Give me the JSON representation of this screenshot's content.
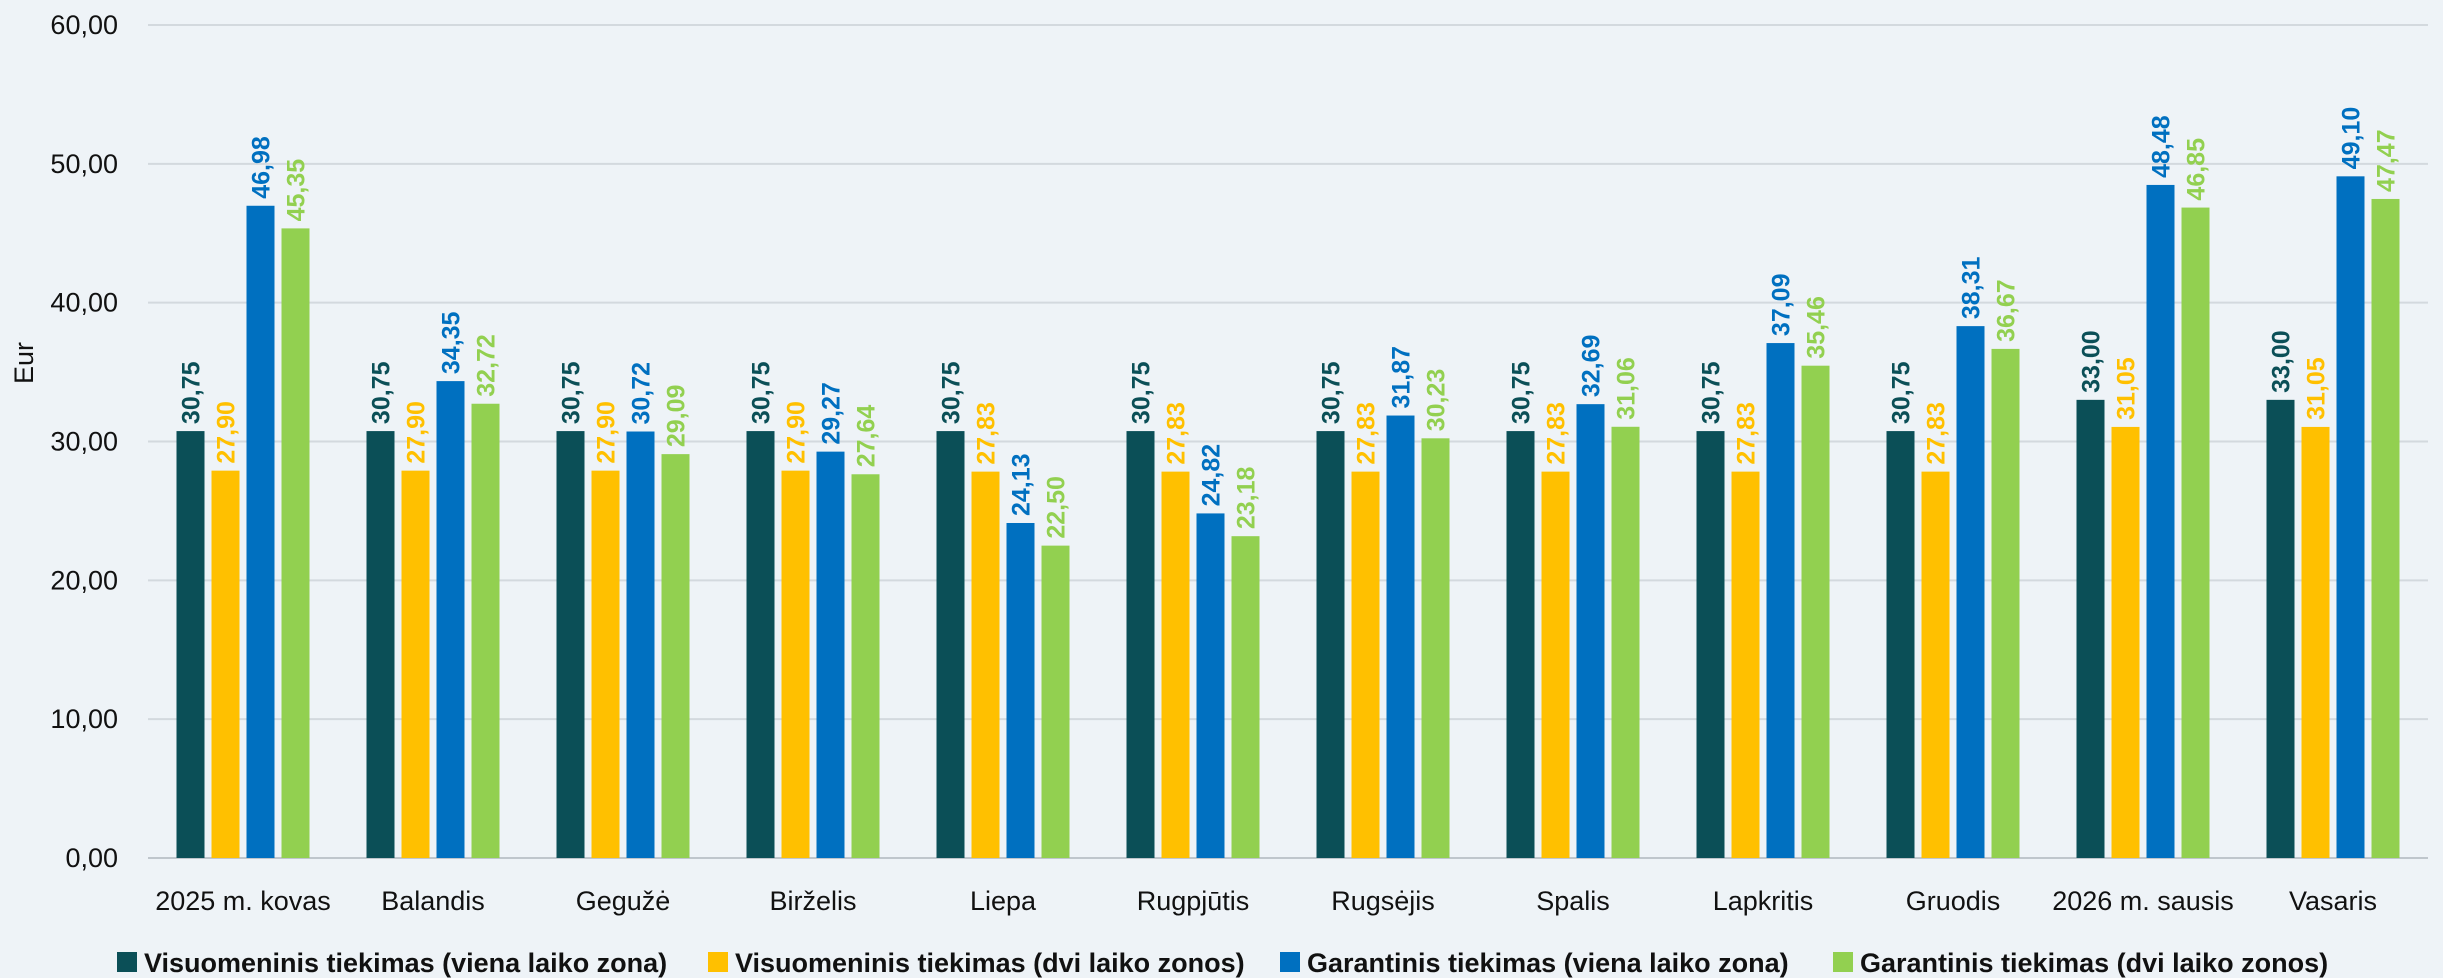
{
  "chart_data": {
    "type": "bar",
    "ylabel": "Eur",
    "ylim": [
      0,
      60
    ],
    "yticks": [
      "0,00",
      "10,00",
      "20,00",
      "30,00",
      "40,00",
      "50,00",
      "60,00"
    ],
    "grid": true,
    "legend_position": "bottom",
    "categories": [
      "2025 m. kovas",
      "Balandis",
      "Gegužė",
      "Birželis",
      "Liepa",
      "Rugpjūtis",
      "Rugsėjis",
      "Spalis",
      "Lapkritis",
      "Gruodis",
      "2026 m. sausis",
      "Vasaris"
    ],
    "series": [
      {
        "name": "Visuomeninis tiekimas (viena laiko zona)",
        "color": "#0b4f57",
        "values": [
          30.75,
          30.75,
          30.75,
          30.75,
          30.75,
          30.75,
          30.75,
          30.75,
          30.75,
          30.75,
          33.0,
          33.0
        ],
        "labels": [
          "30,75",
          "30,75",
          "30,75",
          "30,75",
          "30,75",
          "30,75",
          "30,75",
          "30,75",
          "30,75",
          "30,75",
          "33,00",
          "33,00"
        ]
      },
      {
        "name": "Visuomeninis tiekimas (dvi laiko zonos)",
        "color": "#ffc000",
        "values": [
          27.9,
          27.9,
          27.9,
          27.9,
          27.83,
          27.83,
          27.83,
          27.83,
          27.83,
          27.83,
          31.05,
          31.05
        ],
        "labels": [
          "27,90",
          "27,90",
          "27,90",
          "27,90",
          "27,83",
          "27,83",
          "27,83",
          "27,83",
          "27,83",
          "27,83",
          "31,05",
          "31,05"
        ]
      },
      {
        "name": "Garantinis tiekimas (viena laiko zona)",
        "color": "#0070c0",
        "values": [
          46.98,
          34.35,
          30.72,
          29.27,
          24.13,
          24.82,
          31.87,
          32.69,
          37.09,
          38.31,
          48.48,
          49.1
        ],
        "labels": [
          "46,98",
          "34,35",
          "30,72",
          "29,27",
          "24,13",
          "24,82",
          "31,87",
          "32,69",
          "37,09",
          "38,31",
          "48,48",
          "49,10"
        ]
      },
      {
        "name": "Garantinis tiekimas (dvi laiko zonos)",
        "color": "#92d050",
        "values": [
          45.35,
          32.72,
          29.09,
          27.64,
          22.5,
          23.18,
          30.23,
          31.06,
          35.46,
          36.67,
          46.85,
          47.47
        ],
        "labels": [
          "45,35",
          "32,72",
          "29,09",
          "27,64",
          "22,50",
          "23,18",
          "30,23",
          "31,06",
          "35,46",
          "36,67",
          "46,85",
          "47,47"
        ]
      }
    ]
  }
}
